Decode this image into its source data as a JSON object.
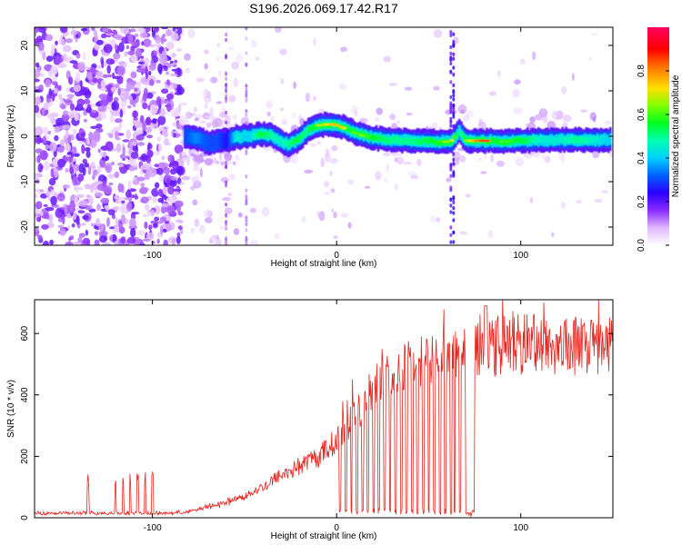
{
  "title": "S196.2026.069.17.42.R17",
  "chart_data": [
    {
      "type": "heatmap",
      "xlabel": "Height of straight line (km)",
      "ylabel": "Frequency (Hz)",
      "xlim": [
        -164,
        150
      ],
      "ylim": [
        -24,
        24
      ],
      "xticks": [
        -100,
        0,
        100
      ],
      "yticks": [
        -20,
        -10,
        0,
        10,
        20
      ],
      "colorbar": {
        "label": "Normalized spectral amplitude",
        "range": [
          0,
          1
        ],
        "ticks": [
          0,
          0.2,
          0.4,
          0.6,
          0.8
        ],
        "colors": [
          "#ffffff",
          "#e9c9ff",
          "#b070ff",
          "#6b00ff",
          "#0000ff",
          "#00c8ff",
          "#00ffb0",
          "#00ff00",
          "#c8ff00",
          "#ffd000",
          "#ff2000",
          "#ff0060"
        ]
      },
      "ridge": {
        "x": [
          -83,
          -77,
          -70,
          -65,
          -60,
          -55,
          -48,
          -42,
          -37,
          -31,
          -27,
          -22,
          -17,
          -12,
          -7,
          -2,
          3,
          8,
          13,
          20,
          30,
          40,
          50,
          58,
          62,
          66,
          70,
          78,
          85,
          90,
          95,
          100,
          110,
          120,
          130,
          140,
          148
        ],
        "y": [
          0,
          -0.3,
          -1.5,
          -1.2,
          -0.8,
          -0.2,
          0,
          0.5,
          0.3,
          -1.0,
          -1.8,
          -1.0,
          1.0,
          2.2,
          2.6,
          2.6,
          2.0,
          1.0,
          0.3,
          -0.4,
          -0.8,
          -1.0,
          -1.1,
          -1.2,
          -1.2,
          1.0,
          -1.0,
          -1.0,
          -1.0,
          -1.2,
          -1.0,
          -1.0,
          -0.8,
          -0.8,
          -0.8,
          -0.8,
          -0.8
        ],
        "amplitude": [
          0.3,
          0.35,
          0.3,
          0.3,
          0.25,
          0.45,
          0.4,
          0.55,
          0.5,
          0.45,
          0.5,
          0.55,
          0.5,
          0.65,
          0.7,
          0.75,
          0.75,
          0.6,
          0.65,
          0.55,
          0.5,
          0.5,
          0.55,
          0.6,
          0.75,
          0.45,
          0.6,
          0.9,
          0.92,
          0.6,
          0.6,
          0.55,
          0.45,
          0.45,
          0.5,
          0.45,
          0.4
        ]
      }
    },
    {
      "type": "line",
      "xlabel": "Height of straight line (km)",
      "ylabel": "SNR (10 * v/v)",
      "xlim": [
        -164,
        150
      ],
      "ylim": [
        0,
        710
      ],
      "xticks": [
        -100,
        0,
        100
      ],
      "yticks": [
        0,
        200,
        400,
        600
      ],
      "color": "#e8251f",
      "envelope": {
        "x": [
          -164,
          -90,
          -80,
          -70,
          -60,
          -50,
          -40,
          -30,
          -20,
          -10,
          0,
          10,
          20,
          30,
          40,
          50,
          60,
          70,
          80,
          90,
          100,
          110,
          120,
          130,
          140,
          150
        ],
        "y": [
          15,
          15,
          20,
          35,
          50,
          70,
          100,
          140,
          170,
          200,
          250,
          340,
          430,
          480,
          500,
          510,
          520,
          540,
          560,
          560,
          570,
          570,
          560,
          560,
          560,
          560
        ]
      },
      "dropouts": {
        "spike_dips_x": [
          2,
          5,
          8,
          11,
          14,
          17,
          20,
          23,
          26,
          29,
          32,
          35,
          38,
          41,
          44,
          47,
          50,
          53,
          56,
          59,
          62,
          64,
          67
        ],
        "deep_dropout_x": [
          70,
          75
        ],
        "low_spikes_x": [
          -135,
          -120,
          -116,
          -112,
          -108,
          -104,
          -100
        ]
      }
    }
  ]
}
